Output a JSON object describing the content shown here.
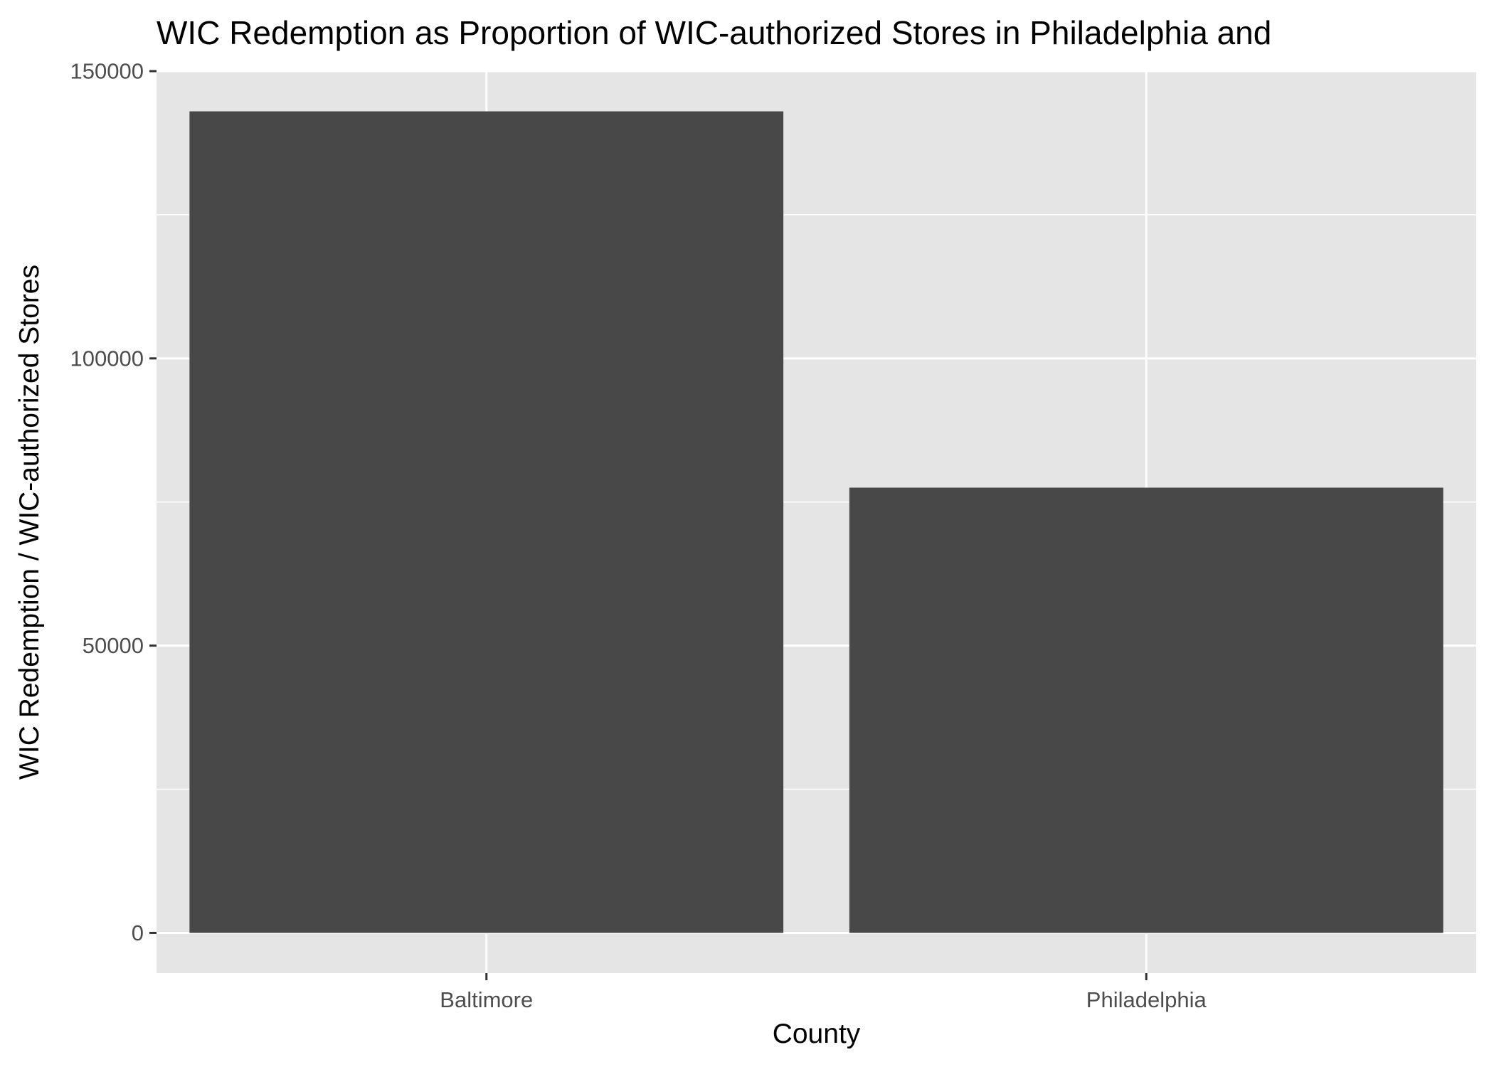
{
  "chart_data": {
    "type": "bar",
    "title": "WIC Redemption as Proportion of WIC-authorized Stores in Philadelphia and",
    "xlabel": "County",
    "ylabel": "WIC Redemption / WIC-authorized Stores",
    "categories": [
      "Baltimore",
      "Philadelphia"
    ],
    "values": [
      143000,
      77500
    ],
    "ylim": [
      -7000,
      150000
    ],
    "yticks": [
      0,
      50000,
      100000,
      150000
    ],
    "ytick_labels": [
      "0",
      "50000",
      "100000",
      "150000"
    ],
    "grid": true,
    "legend": "none"
  },
  "colors": {
    "panel_background": "#e5e5e5",
    "grid_line": "#ffffff",
    "bar_fill": "#484848",
    "tick_mark": "#333333",
    "tick_label": "#4d4d4d"
  }
}
